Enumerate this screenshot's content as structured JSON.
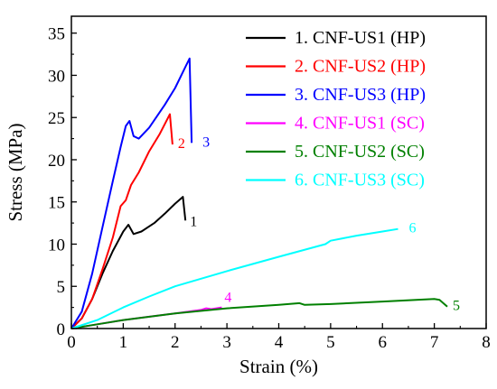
{
  "chart_data": {
    "type": "line",
    "xlabel": "Strain (%)",
    "ylabel": "Stress (MPa)",
    "xlim": [
      0,
      8
    ],
    "ylim": [
      0,
      37
    ],
    "xticks": [
      0,
      1,
      2,
      3,
      4,
      5,
      6,
      7,
      8
    ],
    "yticks": [
      0,
      5,
      10,
      15,
      20,
      25,
      30,
      35
    ],
    "grid": false,
    "legend_position": "top-right",
    "series": [
      {
        "name": "1. CNF-US1 (HP)",
        "end_label": "1",
        "color": "#000000",
        "points": [
          [
            0,
            0
          ],
          [
            0.2,
            1.2
          ],
          [
            0.4,
            3.5
          ],
          [
            0.6,
            6.5
          ],
          [
            0.8,
            9.2
          ],
          [
            1.0,
            11.5
          ],
          [
            1.1,
            12.3
          ],
          [
            1.2,
            11.2
          ],
          [
            1.35,
            11.5
          ],
          [
            1.6,
            12.5
          ],
          [
            1.8,
            13.6
          ],
          [
            2.0,
            14.8
          ],
          [
            2.15,
            15.6
          ],
          [
            2.2,
            12.8
          ]
        ]
      },
      {
        "name": "2. CNF-US2 (HP)",
        "end_label": "2",
        "color": "#ff0000",
        "points": [
          [
            0,
            0
          ],
          [
            0.2,
            1.2
          ],
          [
            0.4,
            3.5
          ],
          [
            0.6,
            7.0
          ],
          [
            0.8,
            10.8
          ],
          [
            0.95,
            14.5
          ],
          [
            1.05,
            15.2
          ],
          [
            1.15,
            17.0
          ],
          [
            1.3,
            18.5
          ],
          [
            1.5,
            21.0
          ],
          [
            1.7,
            23.0
          ],
          [
            1.9,
            25.4
          ],
          [
            1.95,
            21.8
          ]
        ]
      },
      {
        "name": "3. CNF-US3 (HP)",
        "end_label": "3",
        "color": "#0000ff",
        "points": [
          [
            0,
            0
          ],
          [
            0.2,
            2.0
          ],
          [
            0.4,
            6.5
          ],
          [
            0.6,
            12.0
          ],
          [
            0.8,
            17.5
          ],
          [
            0.95,
            21.5
          ],
          [
            1.05,
            24.0
          ],
          [
            1.12,
            24.6
          ],
          [
            1.2,
            22.8
          ],
          [
            1.3,
            22.5
          ],
          [
            1.5,
            23.8
          ],
          [
            1.8,
            26.5
          ],
          [
            2.0,
            28.5
          ],
          [
            2.2,
            31.0
          ],
          [
            2.28,
            32.0
          ],
          [
            2.32,
            22.0
          ]
        ]
      },
      {
        "name": "4. CNF-US1 (SC)",
        "end_label": "4",
        "color": "#ff00ff",
        "points": [
          [
            0,
            0
          ],
          [
            0.5,
            0.5
          ],
          [
            1.0,
            1.0
          ],
          [
            1.5,
            1.4
          ],
          [
            2.0,
            1.8
          ],
          [
            2.5,
            2.2
          ],
          [
            2.6,
            2.4
          ],
          [
            2.7,
            2.3
          ],
          [
            2.9,
            2.5
          ]
        ]
      },
      {
        "name": "5. CNF-US2 (SC)",
        "end_label": "5",
        "color": "#008000",
        "points": [
          [
            0,
            0
          ],
          [
            0.5,
            0.5
          ],
          [
            1.0,
            1.0
          ],
          [
            2.0,
            1.8
          ],
          [
            3.0,
            2.4
          ],
          [
            4.0,
            2.8
          ],
          [
            4.4,
            3.0
          ],
          [
            4.5,
            2.8
          ],
          [
            5.0,
            2.9
          ],
          [
            6.0,
            3.2
          ],
          [
            7.0,
            3.5
          ],
          [
            7.1,
            3.4
          ],
          [
            7.25,
            2.6
          ]
        ]
      },
      {
        "name": "6. CNF-US3 (SC)",
        "end_label": "6",
        "color": "#00ffff",
        "points": [
          [
            0,
            0
          ],
          [
            0.5,
            1.0
          ],
          [
            1.0,
            2.5
          ],
          [
            1.5,
            3.8
          ],
          [
            2.0,
            5.0
          ],
          [
            3.0,
            6.8
          ],
          [
            4.0,
            8.5
          ],
          [
            4.9,
            10.0
          ],
          [
            5.0,
            10.4
          ],
          [
            5.5,
            11.0
          ],
          [
            6.0,
            11.5
          ],
          [
            6.3,
            11.8
          ]
        ]
      }
    ]
  }
}
